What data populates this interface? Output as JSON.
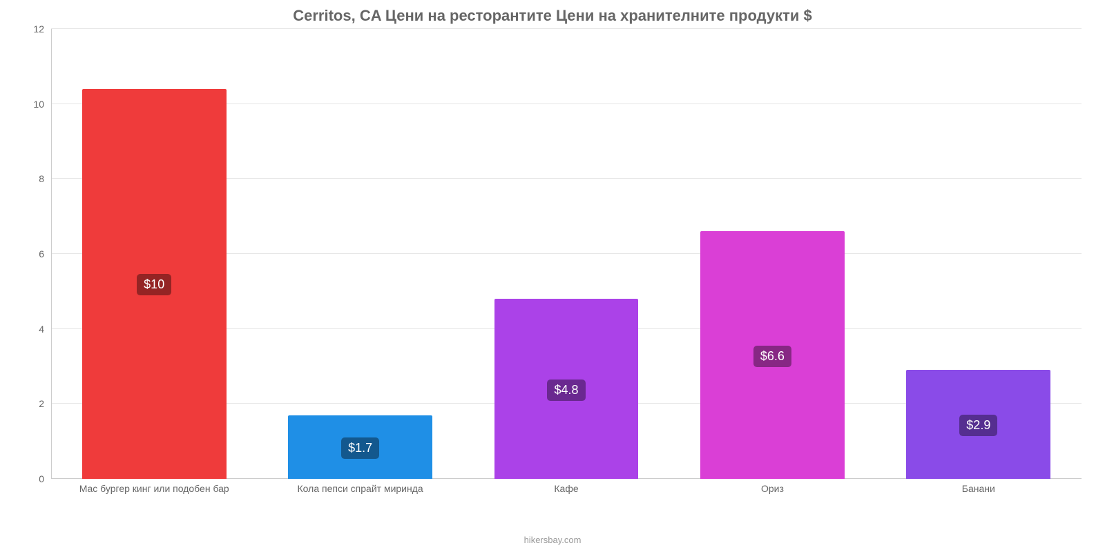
{
  "chart": {
    "type": "bar",
    "title": "Cerritos, CA Цени на ресторантите Цени на хранителните продукти $",
    "title_fontsize": 22,
    "title_color": "#666666",
    "background_color": "#ffffff",
    "grid_color": "#e6e6e6",
    "axis_color": "#cccccc",
    "label_color": "#666666",
    "tick_fontsize": 14,
    "bar_width_ratio": 0.7,
    "ylim_min": 0,
    "ylim_max": 12,
    "ytick_step": 2,
    "yticks": [
      0,
      2,
      4,
      6,
      8,
      10,
      12
    ],
    "categories": [
      "Мас бургер кинг или подобен бар",
      "Кола пепси спрайт миринда",
      "Кафе",
      "Ориз",
      "Банани"
    ],
    "values": [
      10.4,
      1.7,
      4.8,
      6.6,
      2.9
    ],
    "value_labels": [
      "$10",
      "$1.7",
      "$4.8",
      "$6.6",
      "$2.9"
    ],
    "bar_colors": [
      "#ef3b3b",
      "#1f8fe6",
      "#ab42e8",
      "#da3fd6",
      "#8a4be8"
    ],
    "value_label_bg": "rgba(0,0,0,0.38)",
    "value_label_color": "#ffffff",
    "value_label_fontsize": 18
  },
  "credit": "hikersbay.com"
}
